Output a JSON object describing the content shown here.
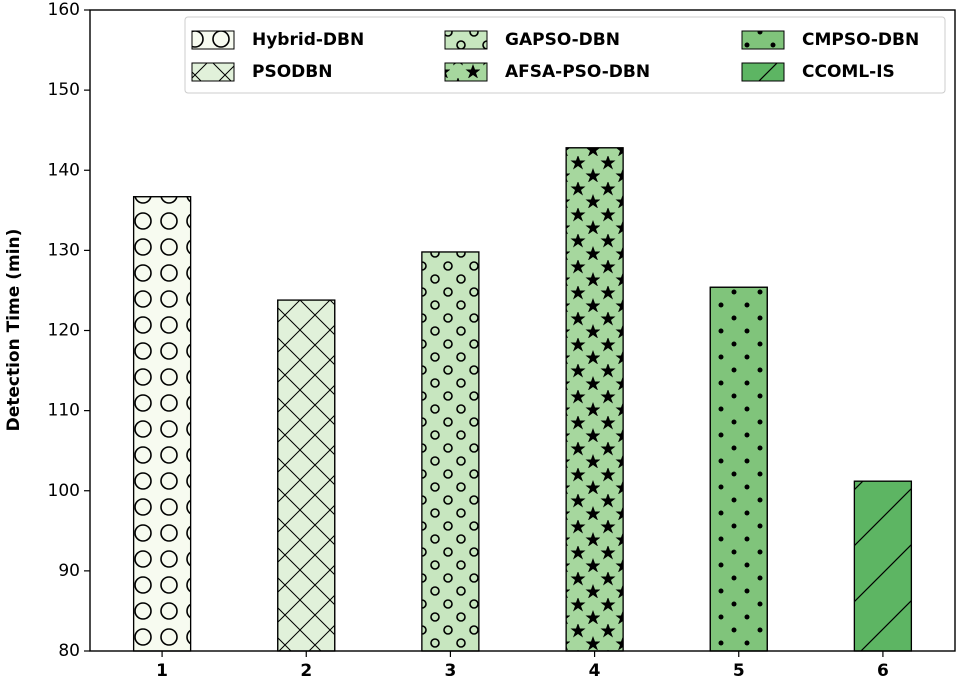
{
  "chart_data": {
    "type": "bar",
    "categories": [
      "1",
      "2",
      "3",
      "4",
      "5",
      "6"
    ],
    "series": [
      {
        "name": "Hybrid-DBN",
        "color": "#f7fbf0",
        "values": [
          136.7,
          null,
          null,
          null,
          null,
          null
        ]
      },
      {
        "name": "PSODBN",
        "color": "#e1f1da",
        "values": [
          null,
          123.8,
          null,
          null,
          null,
          null
        ]
      },
      {
        "name": "GAPSO-DBN",
        "color": "#c7e6bf",
        "values": [
          null,
          null,
          129.8,
          null,
          null,
          null
        ]
      },
      {
        "name": "AFSA-PSO-DBN",
        "color": "#a6d79e",
        "values": [
          null,
          null,
          null,
          142.8,
          null,
          null
        ]
      },
      {
        "name": "CMPSO-DBN",
        "color": "#80c47b",
        "values": [
          null,
          null,
          null,
          null,
          125.4,
          null
        ]
      },
      {
        "name": "CCOML-IS",
        "color": "#5db563",
        "values": [
          null,
          null,
          null,
          null,
          null,
          101.2
        ]
      }
    ],
    "ylabel": "Detection  Time (min)",
    "ylim": [
      80,
      160
    ],
    "yticks": [
      80,
      90,
      100,
      110,
      120,
      130,
      140,
      150,
      160
    ]
  }
}
